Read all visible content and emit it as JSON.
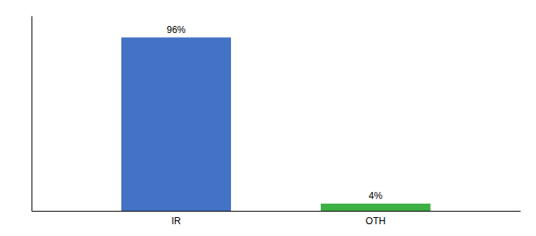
{
  "chart_data": {
    "type": "bar",
    "categories": [
      "IR",
      "OTH"
    ],
    "values": [
      96,
      4
    ],
    "value_labels": [
      "96%",
      "4%"
    ],
    "colors": [
      "#4472C4",
      "#3CB043"
    ],
    "ylim": [
      0,
      108
    ],
    "yticks": [],
    "data_labels": true,
    "tick_labels": "x"
  }
}
